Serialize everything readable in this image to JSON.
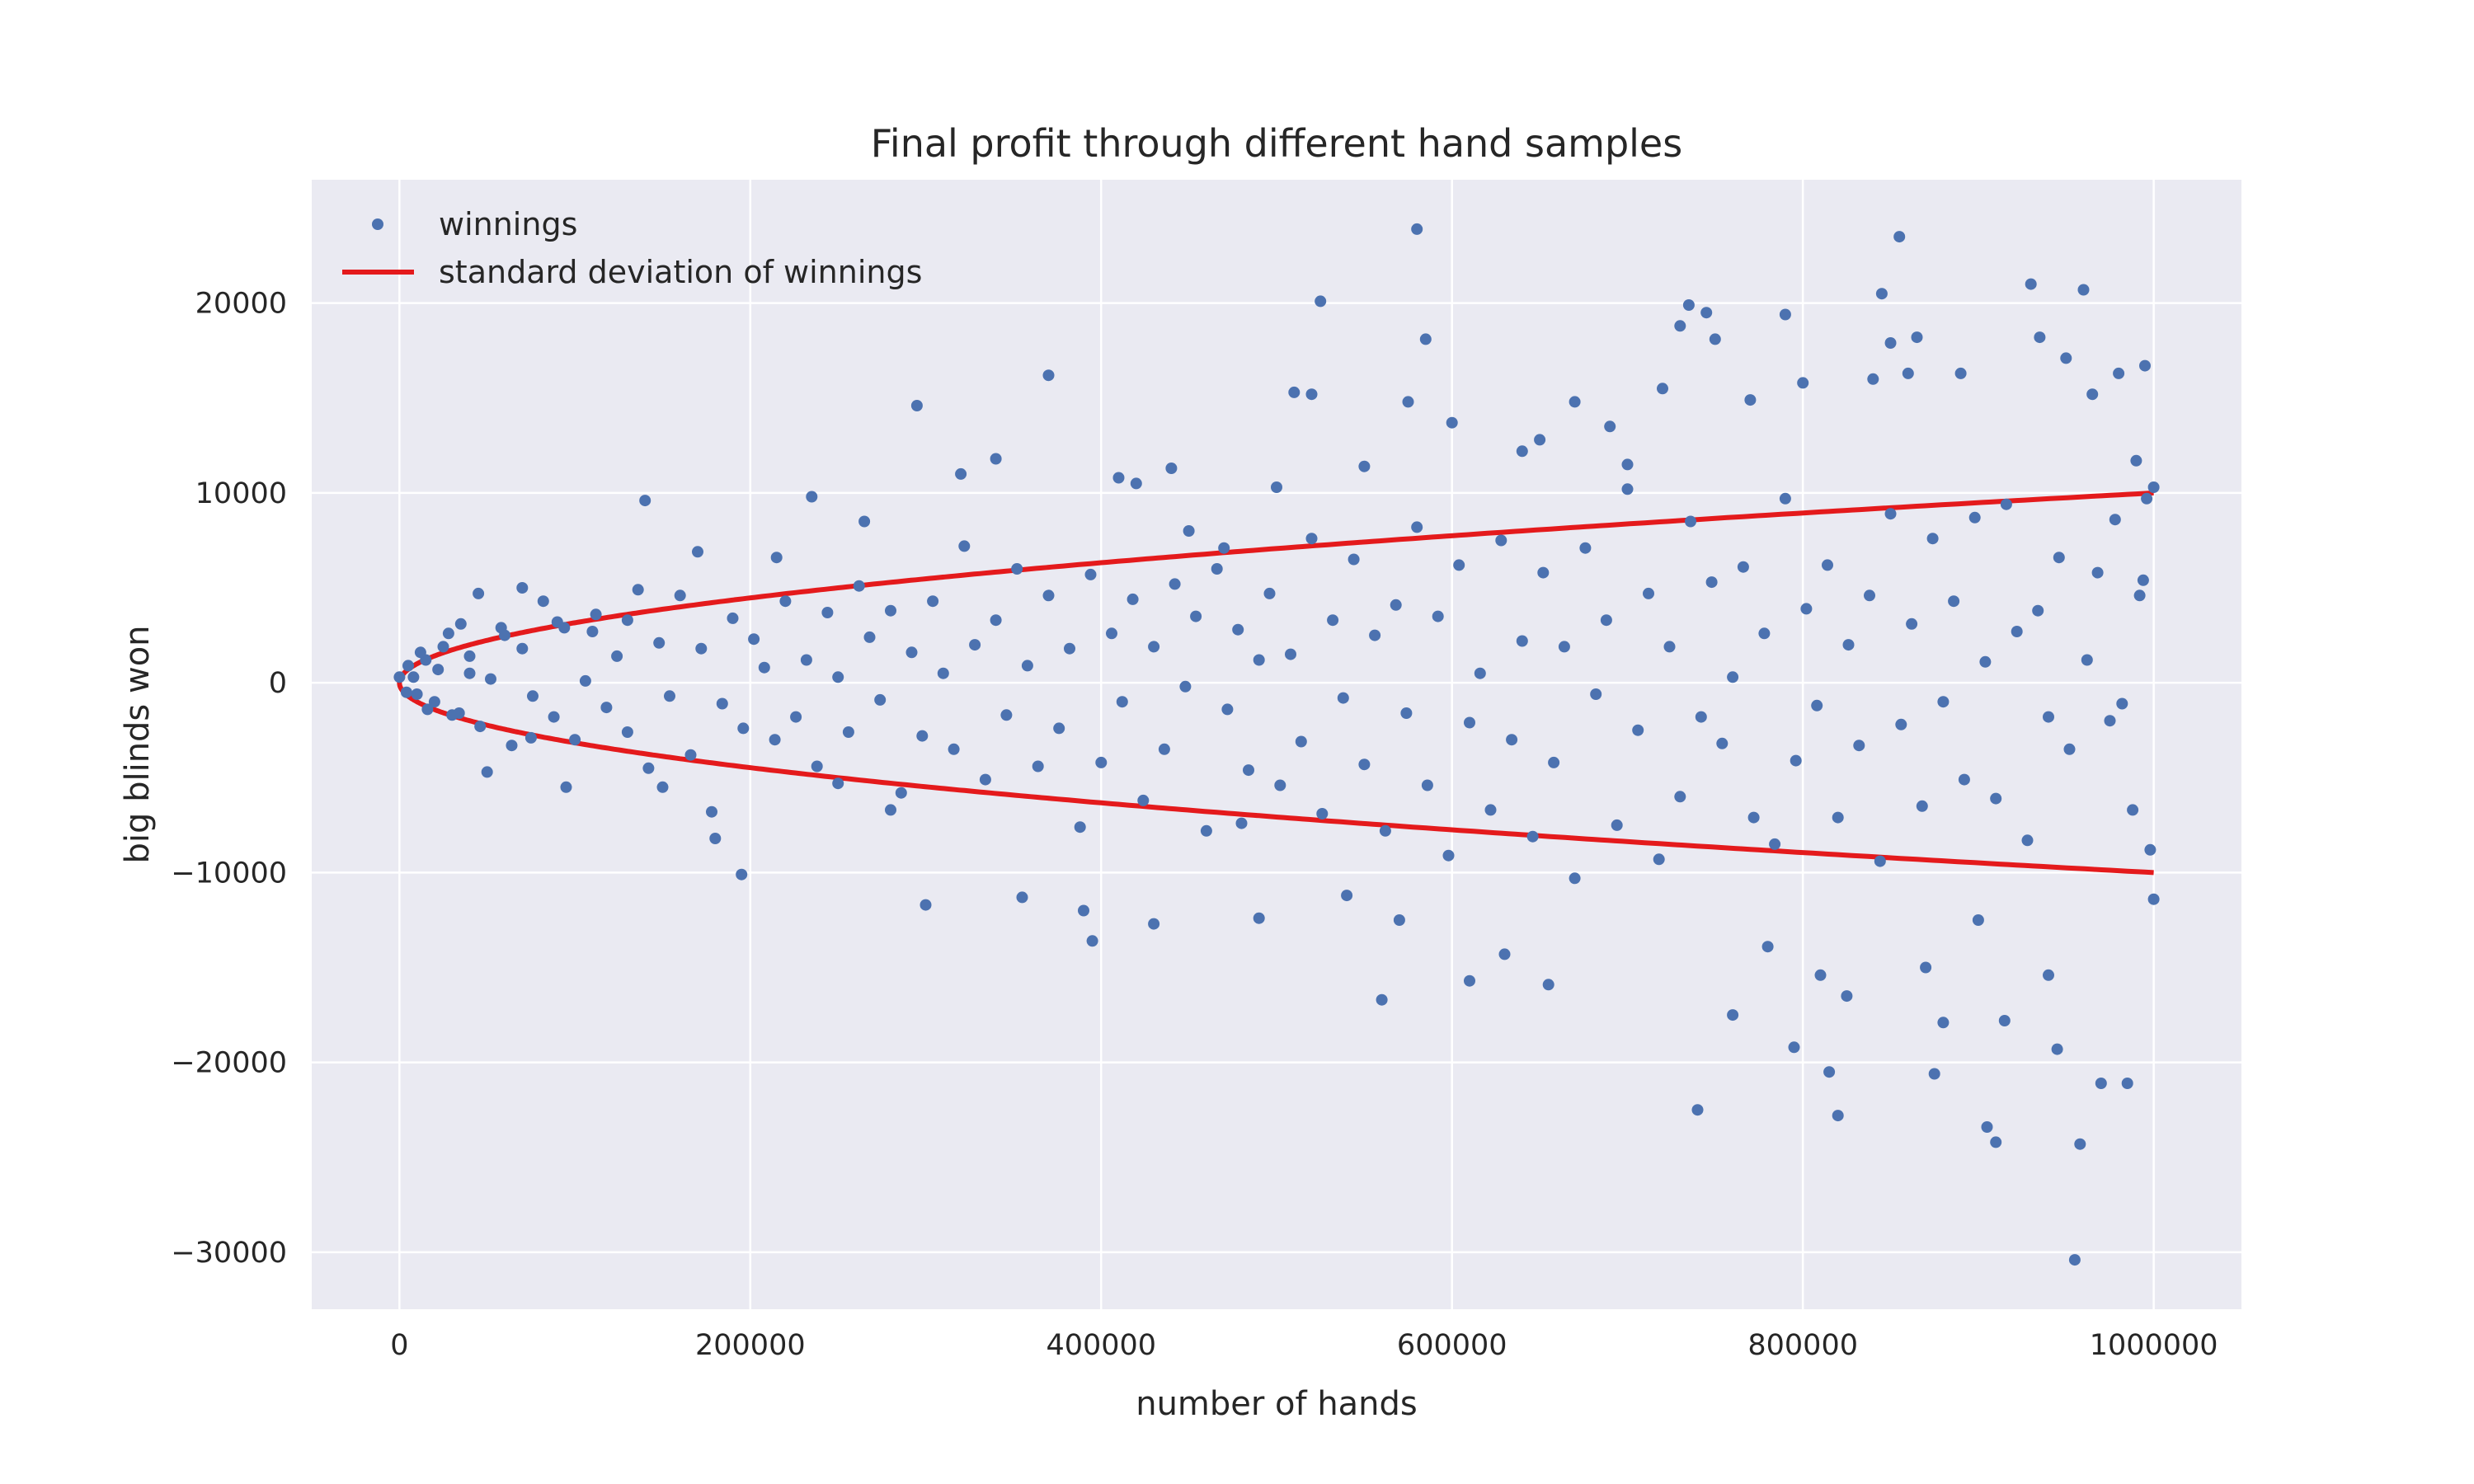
{
  "chart_data": {
    "type": "scatter",
    "title": "Final profit through different hand samples",
    "xlabel": "number of hands",
    "ylabel": "big blinds won",
    "xlim": [
      -50000,
      1050000
    ],
    "ylim": [
      -33000,
      26500
    ],
    "x_ticks": [
      0,
      200000,
      400000,
      600000,
      800000,
      1000000
    ],
    "x_tick_labels": [
      "0",
      "200000",
      "400000",
      "600000",
      "800000",
      "1000000"
    ],
    "y_ticks": [
      -30000,
      -20000,
      -10000,
      0,
      10000,
      20000
    ],
    "y_tick_labels": [
      "−30000",
      "−20000",
      "−10000",
      "0",
      "10000",
      "20000"
    ],
    "grid": true,
    "legend_position": "top-left",
    "background_color": "#eaeaf2",
    "series": [
      {
        "name": "winnings",
        "kind": "scatter",
        "color": "#4c72b0",
        "points": [
          [
            0,
            300
          ],
          [
            5000,
            900
          ],
          [
            10000,
            -600
          ],
          [
            15000,
            1200
          ],
          [
            20000,
            -1000
          ],
          [
            25000,
            1900
          ],
          [
            30000,
            -1700
          ],
          [
            35000,
            3100
          ],
          [
            40000,
            500
          ],
          [
            45000,
            4700
          ],
          [
            50000,
            -4700
          ],
          [
            60000,
            2500
          ],
          [
            70000,
            5000
          ],
          [
            75000,
            -2900
          ],
          [
            90000,
            3200
          ],
          [
            95000,
            -5500
          ],
          [
            110000,
            2700
          ],
          [
            130000,
            3300
          ],
          [
            140000,
            9600
          ],
          [
            150000,
            -5500
          ],
          [
            170000,
            6900
          ],
          [
            180000,
            -8200
          ],
          [
            195000,
            -10100
          ],
          [
            215000,
            6600
          ],
          [
            235000,
            9800
          ],
          [
            250000,
            -5300
          ],
          [
            265000,
            8500
          ],
          [
            280000,
            -6700
          ],
          [
            295000,
            14600
          ],
          [
            300000,
            -11700
          ],
          [
            320000,
            11000
          ],
          [
            340000,
            11800
          ],
          [
            355000,
            -11300
          ],
          [
            370000,
            16200
          ],
          [
            390000,
            -12000
          ],
          [
            395000,
            -13600
          ],
          [
            410000,
            10800
          ],
          [
            420000,
            10500
          ],
          [
            430000,
            -12700
          ],
          [
            440000,
            11300
          ],
          [
            450000,
            8000
          ],
          [
            470000,
            7100
          ],
          [
            480000,
            -7400
          ],
          [
            490000,
            -12400
          ],
          [
            500000,
            10300
          ],
          [
            510000,
            15300
          ],
          [
            520000,
            15200
          ],
          [
            525000,
            20100
          ],
          [
            540000,
            -11200
          ],
          [
            550000,
            11400
          ],
          [
            560000,
            -16700
          ],
          [
            570000,
            -12500
          ],
          [
            575000,
            14800
          ],
          [
            580000,
            23900
          ],
          [
            585000,
            18100
          ],
          [
            600000,
            13700
          ],
          [
            610000,
            -15700
          ],
          [
            630000,
            -14300
          ],
          [
            640000,
            12200
          ],
          [
            650000,
            12800
          ],
          [
            655000,
            -15900
          ],
          [
            670000,
            14800
          ],
          [
            690000,
            13500
          ],
          [
            700000,
            11500
          ],
          [
            720000,
            15500
          ],
          [
            730000,
            18800
          ],
          [
            735000,
            19900
          ],
          [
            740000,
            -22500
          ],
          [
            745000,
            19500
          ],
          [
            750000,
            18100
          ],
          [
            760000,
            -17500
          ],
          [
            770000,
            14900
          ],
          [
            780000,
            -13900
          ],
          [
            790000,
            19400
          ],
          [
            795000,
            -19200
          ],
          [
            800000,
            15800
          ],
          [
            810000,
            -15400
          ],
          [
            815000,
            -20500
          ],
          [
            820000,
            -22800
          ],
          [
            825000,
            -16500
          ],
          [
            840000,
            16000
          ],
          [
            845000,
            20500
          ],
          [
            850000,
            17900
          ],
          [
            855000,
            23500
          ],
          [
            860000,
            16300
          ],
          [
            865000,
            18200
          ],
          [
            870000,
            -15000
          ],
          [
            875000,
            -20600
          ],
          [
            880000,
            -17900
          ],
          [
            890000,
            16300
          ],
          [
            900000,
            -12500
          ],
          [
            905000,
            -23400
          ],
          [
            910000,
            -24200
          ],
          [
            915000,
            -17800
          ],
          [
            930000,
            21000
          ],
          [
            935000,
            18200
          ],
          [
            940000,
            -15400
          ],
          [
            945000,
            -19300
          ],
          [
            950000,
            17100
          ],
          [
            955000,
            -30400
          ],
          [
            958000,
            -24300
          ],
          [
            960000,
            20700
          ],
          [
            965000,
            15200
          ],
          [
            970000,
            -21100
          ],
          [
            980000,
            16300
          ],
          [
            985000,
            -21100
          ],
          [
            990000,
            11700
          ],
          [
            995000,
            16700
          ],
          [
            1000000,
            10300
          ],
          [
            1000000,
            -11400
          ],
          [
            998000,
            -8800
          ],
          [
            996000,
            9700
          ],
          [
            994000,
            5400
          ],
          [
            992000,
            4600
          ],
          [
            988000,
            -6700
          ],
          [
            982000,
            -1100
          ],
          [
            978000,
            8600
          ],
          [
            975000,
            -2000
          ],
          [
            968000,
            5800
          ],
          [
            962000,
            1200
          ],
          [
            952000,
            -3500
          ],
          [
            946000,
            6600
          ],
          [
            940000,
            -1800
          ],
          [
            934000,
            3800
          ],
          [
            928000,
            -8300
          ],
          [
            922000,
            2700
          ],
          [
            916000,
            9400
          ],
          [
            910000,
            -6100
          ],
          [
            904000,
            1100
          ],
          [
            898000,
            8700
          ],
          [
            892000,
            -5100
          ],
          [
            886000,
            4300
          ],
          [
            880000,
            -1000
          ],
          [
            874000,
            7600
          ],
          [
            868000,
            -6500
          ],
          [
            862000,
            3100
          ],
          [
            856000,
            -2200
          ],
          [
            850000,
            8900
          ],
          [
            844000,
            -9400
          ],
          [
            838000,
            4600
          ],
          [
            832000,
            -3300
          ],
          [
            826000,
            2000
          ],
          [
            820000,
            -7100
          ],
          [
            814000,
            6200
          ],
          [
            808000,
            -1200
          ],
          [
            802000,
            3900
          ],
          [
            796000,
            -4100
          ],
          [
            790000,
            9700
          ],
          [
            784000,
            -8500
          ],
          [
            778000,
            2600
          ],
          [
            772000,
            -7100
          ],
          [
            766000,
            6100
          ],
          [
            760000,
            300
          ],
          [
            754000,
            -3200
          ],
          [
            748000,
            5300
          ],
          [
            742000,
            -1800
          ],
          [
            736000,
            8500
          ],
          [
            730000,
            -6000
          ],
          [
            724000,
            1900
          ],
          [
            718000,
            -9300
          ],
          [
            712000,
            4700
          ],
          [
            706000,
            -2500
          ],
          [
            700000,
            10200
          ],
          [
            694000,
            -7500
          ],
          [
            688000,
            3300
          ],
          [
            682000,
            -600
          ],
          [
            676000,
            7100
          ],
          [
            670000,
            -10300
          ],
          [
            664000,
            1900
          ],
          [
            658000,
            -4200
          ],
          [
            652000,
            5800
          ],
          [
            646000,
            -8100
          ],
          [
            640000,
            2200
          ],
          [
            634000,
            -3000
          ],
          [
            628000,
            7500
          ],
          [
            622000,
            -6700
          ],
          [
            616000,
            500
          ],
          [
            610000,
            -2100
          ],
          [
            604000,
            6200
          ],
          [
            598000,
            -9100
          ],
          [
            592000,
            3500
          ],
          [
            586000,
            -5400
          ],
          [
            580000,
            8200
          ],
          [
            574000,
            -1600
          ],
          [
            568000,
            4100
          ],
          [
            562000,
            -7800
          ],
          [
            556000,
            2500
          ],
          [
            550000,
            -4300
          ],
          [
            544000,
            6500
          ],
          [
            538000,
            -800
          ],
          [
            532000,
            3300
          ],
          [
            526000,
            -6900
          ],
          [
            520000,
            7600
          ],
          [
            514000,
            -3100
          ],
          [
            508000,
            1500
          ],
          [
            502000,
            -5400
          ],
          [
            496000,
            4700
          ],
          [
            490000,
            1200
          ],
          [
            484000,
            -4600
          ],
          [
            478000,
            2800
          ],
          [
            472000,
            -1400
          ],
          [
            466000,
            6000
          ],
          [
            460000,
            -7800
          ],
          [
            454000,
            3500
          ],
          [
            448000,
            -200
          ],
          [
            442000,
            5200
          ],
          [
            436000,
            -3500
          ],
          [
            430000,
            1900
          ],
          [
            424000,
            -6200
          ],
          [
            418000,
            4400
          ],
          [
            412000,
            -1000
          ],
          [
            406000,
            2600
          ],
          [
            400000,
            -4200
          ],
          [
            394000,
            5700
          ],
          [
            388000,
            -7600
          ],
          [
            382000,
            1800
          ],
          [
            376000,
            -2400
          ],
          [
            370000,
            4600
          ],
          [
            364000,
            -4400
          ],
          [
            358000,
            900
          ],
          [
            352000,
            6000
          ],
          [
            346000,
            -1700
          ],
          [
            340000,
            3300
          ],
          [
            334000,
            -5100
          ],
          [
            328000,
            2000
          ],
          [
            322000,
            7200
          ],
          [
            316000,
            -3500
          ],
          [
            310000,
            500
          ],
          [
            304000,
            4300
          ],
          [
            298000,
            -2800
          ],
          [
            292000,
            1600
          ],
          [
            286000,
            -5800
          ],
          [
            280000,
            3800
          ],
          [
            274000,
            -900
          ],
          [
            268000,
            2400
          ],
          [
            262000,
            5100
          ],
          [
            256000,
            -2600
          ],
          [
            250000,
            300
          ],
          [
            244000,
            3700
          ],
          [
            238000,
            -4400
          ],
          [
            232000,
            1200
          ],
          [
            226000,
            -1800
          ],
          [
            220000,
            4300
          ],
          [
            214000,
            -3000
          ],
          [
            208000,
            800
          ],
          [
            202000,
            2300
          ],
          [
            196000,
            -2400
          ],
          [
            190000,
            3400
          ],
          [
            184000,
            -1100
          ],
          [
            178000,
            -6800
          ],
          [
            172000,
            1800
          ],
          [
            166000,
            -3800
          ],
          [
            160000,
            4600
          ],
          [
            154000,
            -700
          ],
          [
            148000,
            2100
          ],
          [
            142000,
            -4500
          ],
          [
            136000,
            4900
          ],
          [
            130000,
            -2600
          ],
          [
            124000,
            1400
          ],
          [
            118000,
            -1300
          ],
          [
            112000,
            3600
          ],
          [
            106000,
            100
          ],
          [
            100000,
            -3000
          ],
          [
            94000,
            2900
          ],
          [
            88000,
            -1800
          ],
          [
            82000,
            4300
          ],
          [
            76000,
            -700
          ],
          [
            70000,
            1800
          ],
          [
            64000,
            -3300
          ],
          [
            58000,
            2900
          ],
          [
            52000,
            200
          ],
          [
            46000,
            -2300
          ],
          [
            40000,
            1400
          ],
          [
            34000,
            -1600
          ],
          [
            28000,
            2600
          ],
          [
            22000,
            700
          ],
          [
            16000,
            -1400
          ],
          [
            12000,
            1600
          ],
          [
            8000,
            300
          ],
          [
            4000,
            -500
          ]
        ]
      },
      {
        "name": "standard deviation of winnings",
        "kind": "line",
        "color": "#e41a1c",
        "upper_formula": "10 * sqrt(x)",
        "x_range": [
          0,
          1000000
        ]
      }
    ]
  }
}
